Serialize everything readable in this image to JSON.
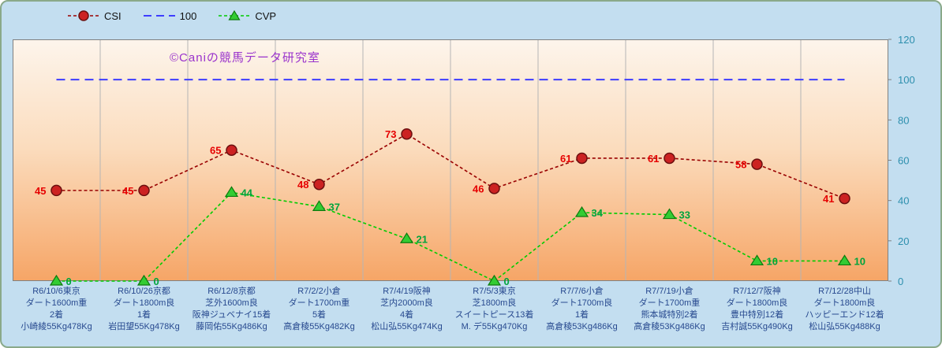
{
  "watermark": "©Caniの競馬データ研究室",
  "legend": {
    "items": [
      {
        "label": "CSI",
        "marker": "circle-on-dashed-line"
      },
      {
        "label": "100",
        "marker": "dashed-line"
      },
      {
        "label": "CVP",
        "marker": "triangle-on-dashed-line"
      }
    ]
  },
  "colors": {
    "outer_bg": "#c3def0",
    "frame_border": "#8aa98a",
    "plot_gradient_top": "#fdf5ec",
    "plot_gradient_mid": "#fbdcbd",
    "plot_gradient_bottom": "#f6a566",
    "plot_border": "#808080",
    "gridline": "#b5b5b5",
    "csi_line": "#990000",
    "csi_marker_fill": "#cc2222",
    "csi_marker_stroke": "#6b0f0f",
    "csi_label": "#e60000",
    "ref_line": "#3d3dff",
    "cvp_line": "#00cc00",
    "cvp_marker_fill": "#33cc33",
    "cvp_marker_stroke": "#0e7a0e",
    "cvp_label": "#00a43c",
    "y_axis_text": "#2d8fae",
    "x_axis_text": "#27498f",
    "watermark": "#9a33cc"
  },
  "chart_data": {
    "type": "line",
    "title": "",
    "legend_position": "top",
    "grid": "vertical-only",
    "y_axis_side": "right",
    "ylim": [
      0,
      120
    ],
    "yticks": [
      0,
      20,
      40,
      60,
      80,
      100,
      120
    ],
    "categories": [
      [
        "R6/10/6東京",
        "ダート1600m重",
        "2着",
        "小崎綾55Kg478Kg"
      ],
      [
        "R6/10/26京都",
        "ダート1800m良",
        "1着",
        "岩田望55Kg478Kg"
      ],
      [
        "R6/12/8京都",
        "芝外1600m良",
        "阪神ジュベナイ15着",
        "藤岡佑55Kg486Kg"
      ],
      [
        "R7/2/2小倉",
        "ダート1700m重",
        "5着",
        "高倉稜55Kg482Kg"
      ],
      [
        "R7/4/19阪神",
        "芝内2000m良",
        "4着",
        "松山弘55Kg474Kg"
      ],
      [
        "R7/5/3東京",
        "芝1800m良",
        "スイートピース13着",
        "M. デ55Kg470Kg"
      ],
      [
        "R7/7/6小倉",
        "ダート1700m良",
        "1着",
        "高倉稜53Kg486Kg"
      ],
      [
        "R7/7/19小倉",
        "ダート1700m重",
        "熊本城特別2着",
        "高倉稜53Kg486Kg"
      ],
      [
        "R7/12/7阪神",
        "ダート1800m良",
        "豊中特別12着",
        "吉村誠55Kg490Kg"
      ],
      [
        "R7/12/28中山",
        "ダート1800m良",
        "ハッピーエンド12着",
        "松山弘55Kg488Kg"
      ]
    ],
    "series": [
      {
        "name": "CSI",
        "style": "dashed",
        "marker": "circle",
        "values": [
          45,
          45,
          65,
          48,
          73,
          46,
          61,
          61,
          58,
          41
        ]
      },
      {
        "name": "100",
        "style": "dashed",
        "marker": "none",
        "values": [
          100,
          100,
          100,
          100,
          100,
          100,
          100,
          100,
          100,
          100
        ]
      },
      {
        "name": "CVP",
        "style": "dashed",
        "marker": "triangle",
        "values": [
          0,
          0,
          44,
          37,
          21,
          0,
          34,
          33,
          10,
          10
        ]
      }
    ]
  }
}
